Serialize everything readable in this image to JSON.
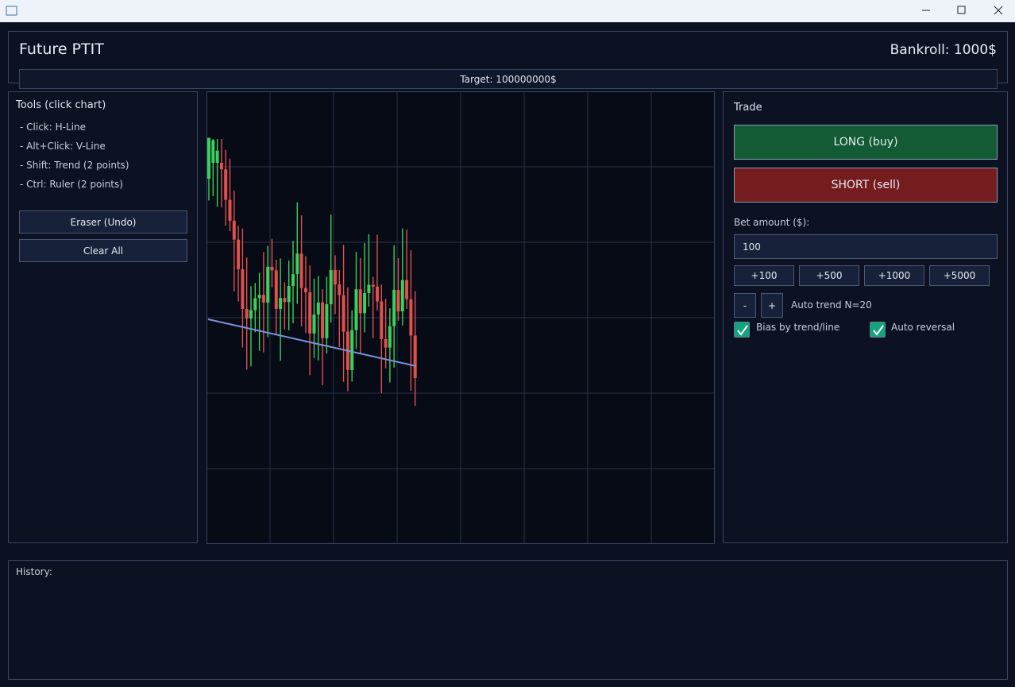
{
  "header": {
    "title": "Future PTIT",
    "bankroll": "Bankroll: 1000$",
    "target": "Target: 100000000$"
  },
  "tools": {
    "title": "Tools (click chart)",
    "items": [
      "- Click: H-Line",
      "- Alt+Click: V-Line",
      "- Shift: Trend (2 points)",
      "- Ctrl: Ruler (2 points)"
    ],
    "buttons": [
      "Eraser (Undo)",
      "Clear All"
    ]
  },
  "trade": {
    "title": "Trade",
    "long": "LONG (buy)",
    "short": "SHORT (sell)",
    "bet_label": "Bet amount ($):",
    "bet_value": "100",
    "increments": [
      "+100",
      "+500",
      "+1000",
      "+5000"
    ],
    "minus": "-",
    "plus": "+",
    "auto_trend": "Auto trend N=20",
    "checks": [
      "Bias by trend/line",
      "Auto reversal"
    ]
  },
  "history": {
    "label": "History:"
  }
}
